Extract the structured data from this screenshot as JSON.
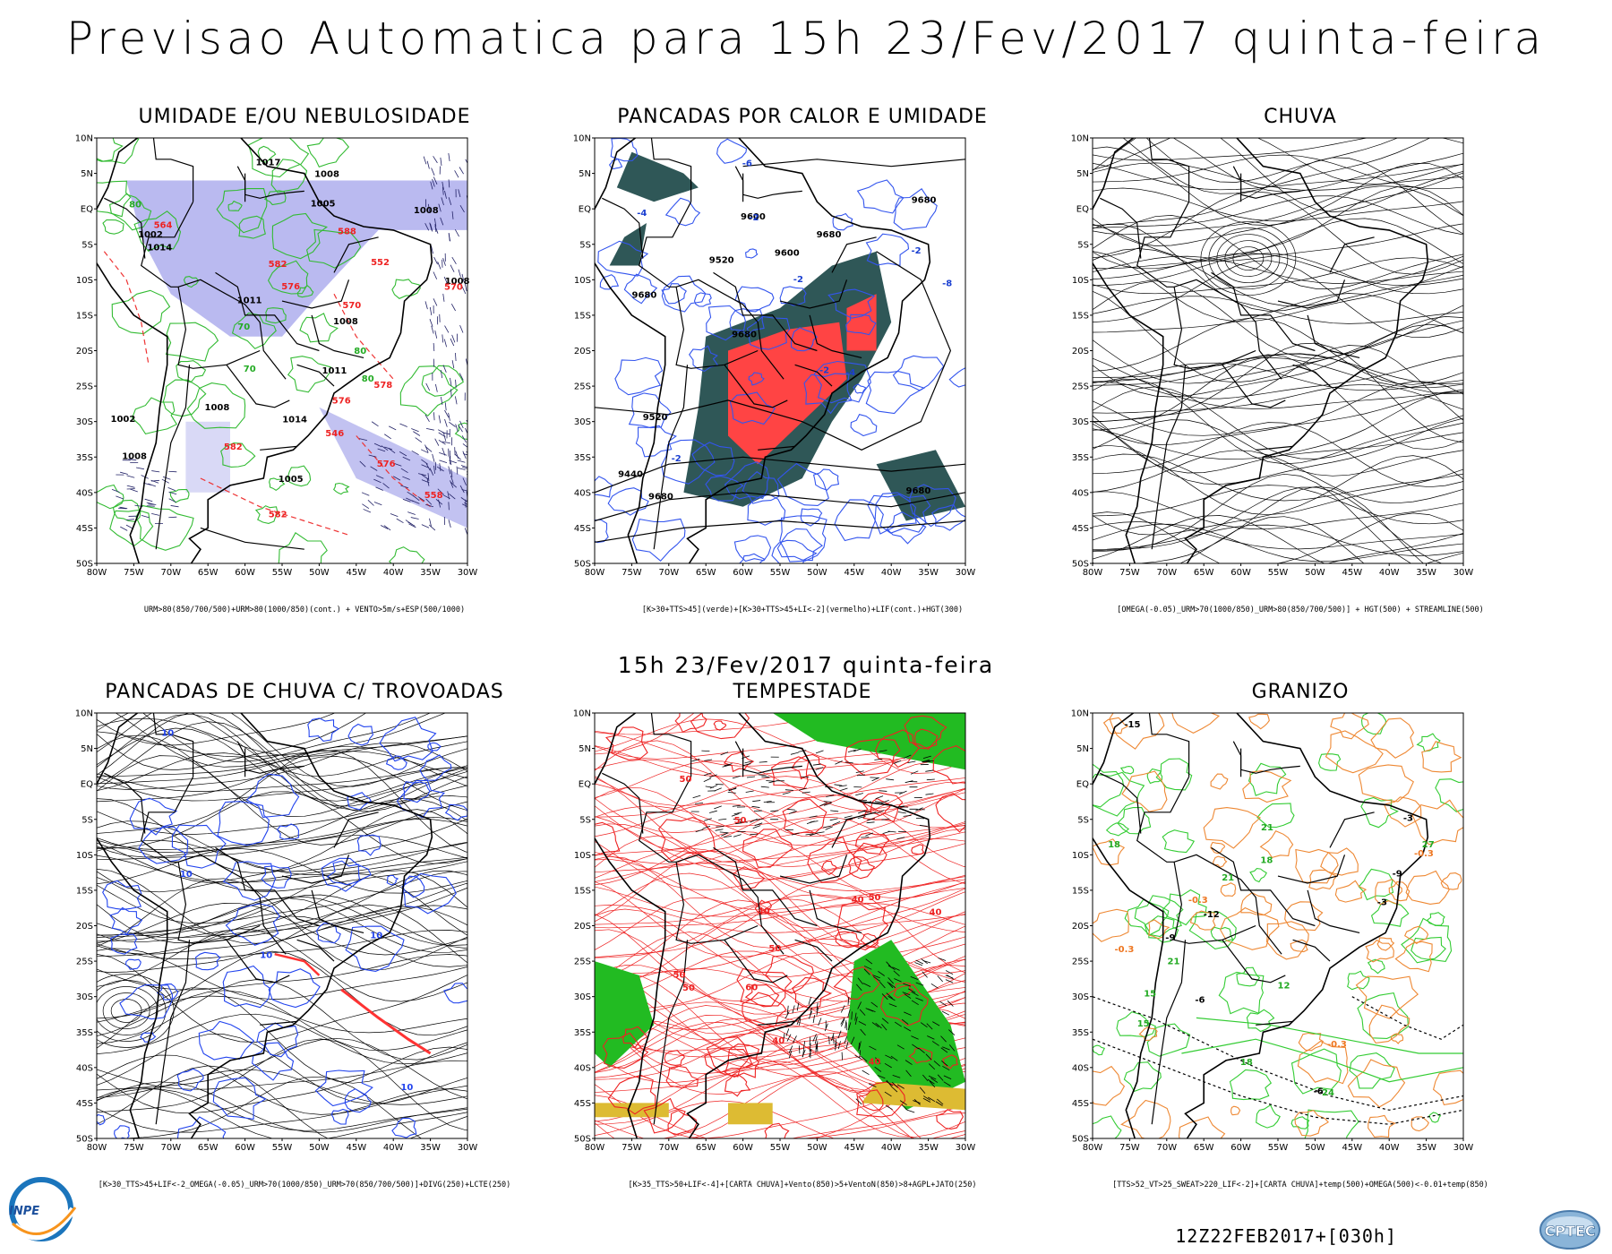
{
  "header": {
    "title": "Previsao Automatica  para 15h 23/Fev/2017 quinta-feira",
    "middle_title": "15h 23/Fev/2017 quinta-feira",
    "run_stamp": "12Z22FEB2017+[030h]"
  },
  "logos": {
    "inpe": "INPE",
    "cptec": "CPTEC"
  },
  "axes": {
    "lat_labels": [
      "10N",
      "5N",
      "EQ",
      "5S",
      "10S",
      "15S",
      "20S",
      "25S",
      "30S",
      "35S",
      "40S",
      "45S",
      "50S"
    ],
    "lon_labels": [
      "80W",
      "75W",
      "70W",
      "65W",
      "60W",
      "55W",
      "50W",
      "45W",
      "40W",
      "35W",
      "30W"
    ]
  },
  "panels": [
    {
      "id": "umidade",
      "title": "UMIDADE E/OU NEBULOSIDADE",
      "footer": "URM>80(850/700/500)+URM>80(1000/850)(cont.) + VENTO>5m/s+ESP(500/1000)",
      "fill_color": "#b3b3ee",
      "contour_color": "#33bb33",
      "labels": [
        "1008",
        "1005",
        "1008",
        "1008",
        "1008",
        "1008",
        "1011",
        "1005",
        "1002",
        "1002",
        "1011",
        "1014",
        "1014",
        "1017",
        "1008",
        "576",
        "582",
        "576",
        "582",
        "588",
        "576",
        "582",
        "578",
        "570",
        "564",
        "570",
        "558",
        "552",
        "546",
        "80",
        "80",
        "80",
        "70",
        "70"
      ]
    },
    {
      "id": "pancadas-calor",
      "title": "PANCADAS POR CALOR E UMIDADE",
      "footer": "[K>30+TTS>45](verde)+[K>30+TTS>45+LI<-2](vermelho)+LIF(cont.)+HGT(300)",
      "fill_color": "#2f5757",
      "accent_color": "#ff4444",
      "labels": [
        "9680",
        "9680",
        "9680",
        "9680",
        "9680",
        "9680",
        "9600",
        "9600",
        "9520",
        "9520",
        "9440",
        "-2",
        "-2",
        "-2",
        "-4",
        "-4",
        "-6",
        "-8",
        "-2",
        "-2"
      ]
    },
    {
      "id": "chuva",
      "title": "CHUVA",
      "footer": "[OMEGA(-0.05)_URM>70(1000/850)_URM>80(850/700/500)] + HGT(500) + STREAMLINE(500)",
      "labels": []
    },
    {
      "id": "trovoadas",
      "title": "PANCADAS DE CHUVA C/ TROVOADAS",
      "footer": "[K>30_TTS>45+LIF<-2_OMEGA(-0.05)_URM>70(1000/850)_URM>70(850/700/500)]+DIVG(250)+LCTE(250)",
      "contour_color": "#2244ee",
      "accent_color": "#ff3333",
      "labels": [
        "10",
        "10",
        "10",
        "10",
        "10"
      ]
    },
    {
      "id": "tempestade",
      "title": "TEMPESTADE",
      "footer": "[K>35_TTS>50+LIF<-4]+[CARTA CHUVA]+Vento(850)>5+VentoN(850)>8+AGPL+JATO(250)",
      "fill_color": "#22bb22",
      "contour_color": "#ee2222",
      "accent_color": "#ddbb33",
      "labels": [
        "40",
        "40",
        "50",
        "50",
        "40",
        "50",
        "40",
        "50",
        "60",
        "40",
        "50",
        "50"
      ]
    },
    {
      "id": "granizo",
      "title": "GRANIZO",
      "footer": "[TTS>52_VT>25_SWEAT>220_LIF<-2]+[CARTA CHUVA]+temp(500)+OMEGA(500)<-0.01+temp(850)",
      "contour_color": "#33cc33",
      "accent_color": "#ee8833",
      "labels": [
        "18",
        "21",
        "18",
        "21",
        "15",
        "18",
        "21",
        "15",
        "12",
        "-9",
        "-6",
        "-3",
        "-0.3",
        "-0.3",
        "-0.3",
        "-0.3",
        "24",
        "27",
        "-6",
        "-3",
        "-12",
        "-15",
        "-9"
      ]
    }
  ]
}
